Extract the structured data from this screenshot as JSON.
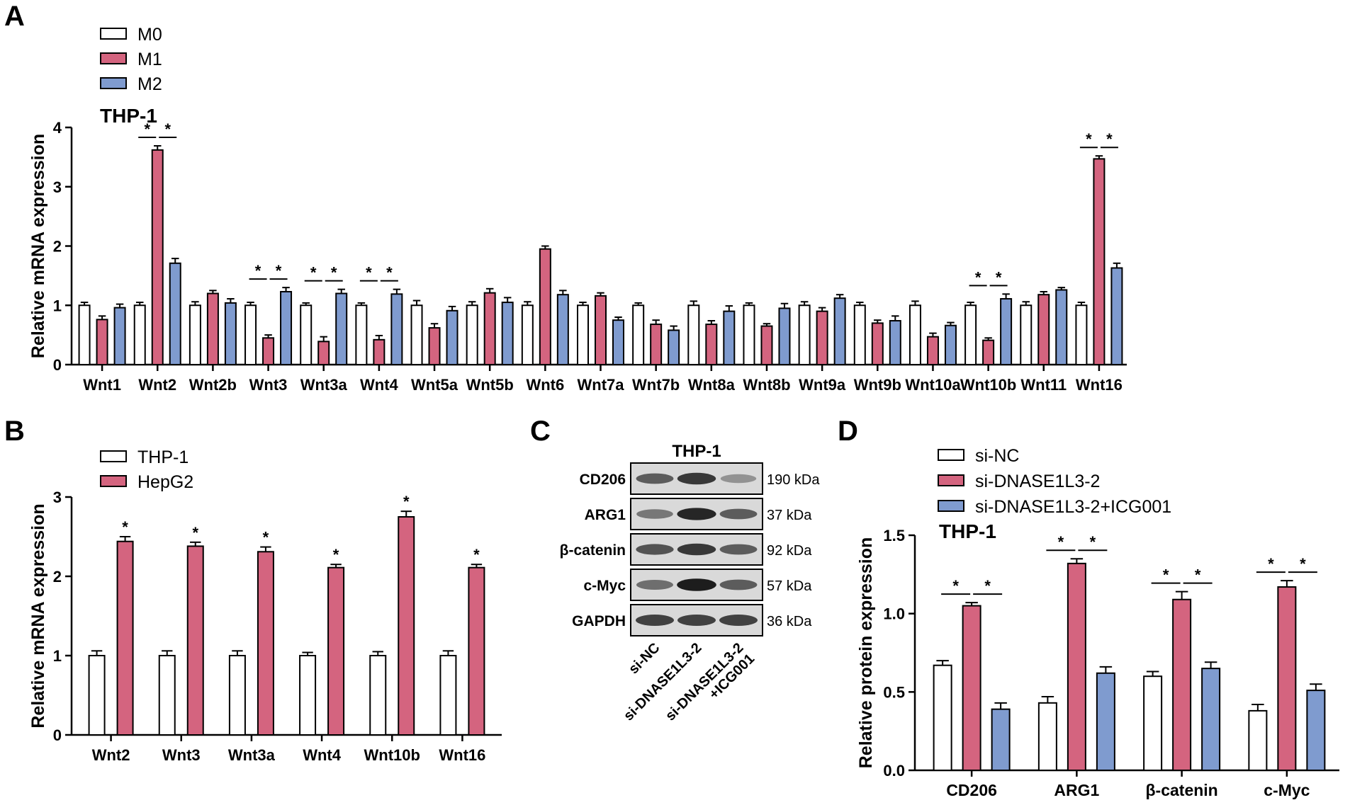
{
  "colors": {
    "m0": "#ffffff",
    "m1": "#d4647f",
    "m2": "#7f9bcf",
    "stroke": "#000000"
  },
  "panels": {
    "A": {
      "letter": "A"
    },
    "B": {
      "letter": "B"
    },
    "C": {
      "letter": "C"
    },
    "D": {
      "letter": "D"
    }
  },
  "chart_data": [
    {
      "panel": "A",
      "type": "bar",
      "title": "THP-1",
      "xlabel": "",
      "ylabel": "Relative mRNA expression",
      "ylim": [
        0,
        4
      ],
      "yticks": [
        0,
        1,
        2,
        3,
        4
      ],
      "legend_placement": "top-left",
      "categories": [
        "Wnt1",
        "Wnt2",
        "Wnt2b",
        "Wnt3",
        "Wnt3a",
        "Wnt4",
        "Wnt5a",
        "Wnt5b",
        "Wnt6",
        "Wnt7a",
        "Wnt7b",
        "Wnt8a",
        "Wnt8b",
        "Wnt9a",
        "Wnt9b",
        "Wnt10a",
        "Wnt10b",
        "Wnt11",
        "Wnt16"
      ],
      "series": [
        {
          "name": "M0",
          "color": "#ffffff",
          "values": [
            1,
            1,
            1,
            1,
            1,
            1,
            1,
            1,
            1,
            1,
            1,
            1,
            1,
            1,
            1,
            1,
            1,
            1,
            1
          ],
          "errors": [
            0.05,
            0.05,
            0.06,
            0.05,
            0.04,
            0.04,
            0.08,
            0.06,
            0.06,
            0.05,
            0.04,
            0.07,
            0.04,
            0.06,
            0.05,
            0.07,
            0.05,
            0.06,
            0.05
          ]
        },
        {
          "name": "M1",
          "color": "#d4647f",
          "values": [
            0.76,
            3.62,
            1.2,
            0.45,
            0.39,
            0.42,
            0.62,
            1.21,
            1.95,
            1.16,
            0.68,
            0.68,
            0.65,
            0.9,
            0.7,
            0.47,
            0.41,
            1.18,
            3.47
          ],
          "errors": [
            0.06,
            0.07,
            0.05,
            0.05,
            0.08,
            0.07,
            0.07,
            0.07,
            0.05,
            0.05,
            0.07,
            0.06,
            0.04,
            0.06,
            0.05,
            0.06,
            0.04,
            0.05,
            0.05
          ]
        },
        {
          "name": "M2",
          "color": "#7f9bcf",
          "values": [
            0.96,
            1.71,
            1.04,
            1.23,
            1.2,
            1.19,
            0.91,
            1.05,
            1.18,
            0.75,
            0.58,
            0.9,
            0.95,
            1.12,
            0.74,
            0.66,
            1.11,
            1.26,
            1.63
          ],
          "errors": [
            0.06,
            0.08,
            0.07,
            0.07,
            0.07,
            0.08,
            0.07,
            0.08,
            0.07,
            0.05,
            0.07,
            0.09,
            0.08,
            0.06,
            0.08,
            0.05,
            0.08,
            0.04,
            0.08
          ]
        }
      ],
      "significance": [
        {
          "category": "Wnt2",
          "pairs": [
            "M0-M1",
            "M1-M2"
          ],
          "label": "*"
        },
        {
          "category": "Wnt3",
          "pairs": [
            "M0-M1",
            "M1-M2"
          ],
          "label": "*"
        },
        {
          "category": "Wnt3a",
          "pairs": [
            "M0-M1",
            "M1-M2"
          ],
          "label": "*"
        },
        {
          "category": "Wnt4",
          "pairs": [
            "M0-M1",
            "M1-M2"
          ],
          "label": "*"
        },
        {
          "category": "Wnt10b",
          "pairs": [
            "M0-M1",
            "M1-M2"
          ],
          "label": "*"
        },
        {
          "category": "Wnt16",
          "pairs": [
            "M0-M1",
            "M1-M2"
          ],
          "label": "*"
        }
      ]
    },
    {
      "panel": "B",
      "type": "bar",
      "title": "",
      "xlabel": "",
      "ylabel": "Relative mRNA expression",
      "ylim": [
        0,
        3
      ],
      "yticks": [
        0,
        1,
        2,
        3
      ],
      "legend_placement": "top-left",
      "categories": [
        "Wnt2",
        "Wnt3",
        "Wnt3a",
        "Wnt4",
        "Wnt10b",
        "Wnt16"
      ],
      "series": [
        {
          "name": "THP-1",
          "color": "#ffffff",
          "values": [
            1,
            1,
            1,
            1,
            1,
            1
          ],
          "errors": [
            0.06,
            0.06,
            0.06,
            0.04,
            0.05,
            0.06
          ]
        },
        {
          "name": "HepG2",
          "color": "#d4647f",
          "values": [
            2.44,
            2.38,
            2.31,
            2.11,
            2.75,
            2.11
          ],
          "errors": [
            0.06,
            0.05,
            0.06,
            0.04,
            0.07,
            0.04
          ]
        }
      ],
      "significance_label": "*"
    },
    {
      "panel": "C",
      "type": "table",
      "title": "THP-1",
      "lanes": [
        "si-NC",
        "si-DNASE1L3-2",
        "si-DNASE1L3-2\n+ICG001"
      ],
      "blots": [
        {
          "protein": "CD206",
          "size": "190 kDa"
        },
        {
          "protein": "ARG1",
          "size": "37 kDa"
        },
        {
          "protein": "β-catenin",
          "size": "92 kDa"
        },
        {
          "protein": "c-Myc",
          "size": "57 kDa"
        },
        {
          "protein": "GAPDH",
          "size": "36 kDa"
        }
      ],
      "band_intensity": [
        [
          0.6,
          0.8,
          0.3
        ],
        [
          0.45,
          0.9,
          0.6
        ],
        [
          0.65,
          0.8,
          0.6
        ],
        [
          0.5,
          0.95,
          0.6
        ],
        [
          0.75,
          0.75,
          0.75
        ]
      ]
    },
    {
      "panel": "D",
      "type": "bar",
      "title": "THP-1",
      "xlabel": "",
      "ylabel": "Relative protein expression",
      "ylim": [
        0,
        1.5
      ],
      "yticks": [
        "0.0",
        "0.5",
        "1.0",
        "1.5"
      ],
      "legend_placement": "top-left",
      "categories": [
        "CD206",
        "ARG1",
        "β-catenin",
        "c-Myc"
      ],
      "series": [
        {
          "name": "si-NC",
          "color": "#ffffff",
          "values": [
            0.67,
            0.43,
            0.6,
            0.38
          ],
          "errors": [
            0.03,
            0.04,
            0.03,
            0.04
          ]
        },
        {
          "name": "si-DNASE1L3-2",
          "color": "#d4647f",
          "values": [
            1.05,
            1.32,
            1.09,
            1.17
          ],
          "errors": [
            0.02,
            0.03,
            0.05,
            0.04
          ]
        },
        {
          "name": "si-DNASE1L3-2+ICG001",
          "color": "#7f9bcf",
          "values": [
            0.39,
            0.62,
            0.65,
            0.51
          ],
          "errors": [
            0.04,
            0.04,
            0.04,
            0.04
          ]
        }
      ],
      "significance_label": "*"
    }
  ]
}
